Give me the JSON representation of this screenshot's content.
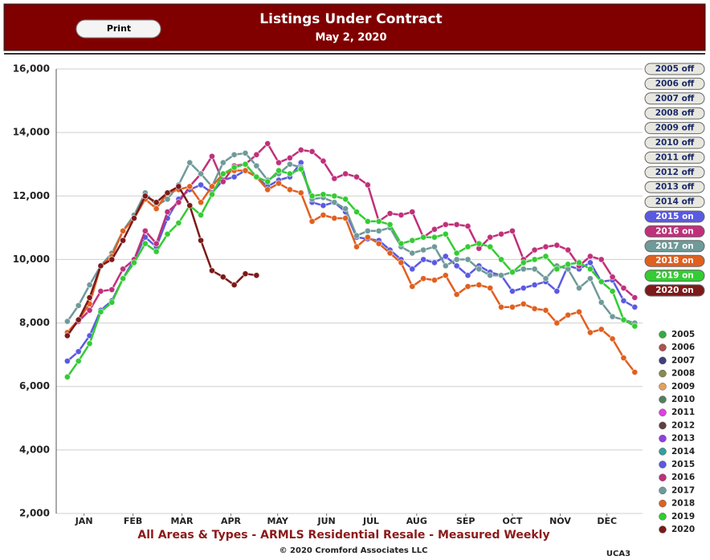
{
  "header": {
    "button": "Print"
  },
  "chart_data": {
    "type": "line",
    "title": "Listings Under Contract",
    "subtitle": "May 2, 2020",
    "x_axis_label": "All Areas & Types - ARMLS Residential Resale - Measured Weekly",
    "credit": "© 2020 Cromford Associates LLC",
    "code": "UCA3",
    "xlim": [
      0,
      52.7
    ],
    "xticks": [
      {
        "value": 2.5,
        "label": "JAN"
      },
      {
        "value": 6.9,
        "label": "FEB"
      },
      {
        "value": 11.3,
        "label": "MAR"
      },
      {
        "value": 15.7,
        "label": "APR"
      },
      {
        "value": 19.9,
        "label": "MAY"
      },
      {
        "value": 24.3,
        "label": "JUN"
      },
      {
        "value": 28.3,
        "label": "JUL"
      },
      {
        "value": 32.4,
        "label": "AUG"
      },
      {
        "value": 36.8,
        "label": "SEP"
      },
      {
        "value": 41,
        "label": "OCT"
      },
      {
        "value": 45.3,
        "label": "NOV"
      },
      {
        "value": 49.5,
        "label": "DEC"
      }
    ],
    "ylim": [
      2000,
      16000
    ],
    "yticks": [
      {
        "value": 2000,
        "label": "2,000"
      },
      {
        "value": 4000,
        "label": "4,000"
      },
      {
        "value": 6000,
        "label": "6,000"
      },
      {
        "value": 8000,
        "label": "8,000"
      },
      {
        "value": 10000,
        "label": "10,000"
      },
      {
        "value": 12000,
        "label": "12,000"
      },
      {
        "value": 14000,
        "label": "14,000"
      },
      {
        "value": 16000,
        "label": "16,000"
      }
    ],
    "grid": true,
    "toggles": [
      {
        "label": "2005 off",
        "on": false
      },
      {
        "label": "2006 off",
        "on": false
      },
      {
        "label": "2007 off",
        "on": false
      },
      {
        "label": "2008 off",
        "on": false
      },
      {
        "label": "2009 off",
        "on": false
      },
      {
        "label": "2010 off",
        "on": false
      },
      {
        "label": "2011 off",
        "on": false
      },
      {
        "label": "2012 off",
        "on": false
      },
      {
        "label": "2013 off",
        "on": false
      },
      {
        "label": "2014 off",
        "on": false
      },
      {
        "label": "2015 on",
        "on": true
      },
      {
        "label": "2016 on",
        "on": true
      },
      {
        "label": "2017 on",
        "on": true
      },
      {
        "label": "2018 on",
        "on": true
      },
      {
        "label": "2019 on",
        "on": true
      },
      {
        "label": "2020 on",
        "on": true
      }
    ],
    "hidden_series": [
      {
        "name": "2005",
        "color": "#33aa44"
      },
      {
        "name": "2006",
        "color": "#b05050"
      },
      {
        "name": "2007",
        "color": "#404080"
      },
      {
        "name": "2008",
        "color": "#8a8a50"
      },
      {
        "name": "2009",
        "color": "#e0a060"
      },
      {
        "name": "2010",
        "color": "#508060"
      },
      {
        "name": "2011",
        "color": "#e040e0"
      },
      {
        "name": "2012",
        "color": "#604040"
      },
      {
        "name": "2013",
        "color": "#9040e0"
      },
      {
        "name": "2014",
        "color": "#30a0a0"
      }
    ],
    "series": [
      {
        "name": "2015",
        "color": "#5a5ae0",
        "values": [
          6800,
          7100,
          7600,
          8400,
          8700,
          9400,
          10000,
          10700,
          10400,
          11300,
          11900,
          12200,
          12350,
          12100,
          12500,
          12600,
          12800,
          12600,
          12300,
          12500,
          12600,
          13050,
          11800,
          11700,
          11800,
          11500,
          10700,
          10650,
          10600,
          10300,
          10000,
          9700,
          10000,
          9900,
          10100,
          9800,
          9500,
          9800,
          9600,
          9500,
          9000,
          9100,
          9200,
          9300,
          9000,
          9800,
          9700,
          9900,
          9300,
          9350,
          8700,
          8500
        ]
      },
      {
        "name": "2016",
        "color": "#c0307a",
        "values": [
          7700,
          8050,
          8400,
          9000,
          9050,
          9700,
          10000,
          10900,
          10500,
          11500,
          11800,
          12300,
          12700,
          13250,
          12450,
          12950,
          13000,
          13300,
          13650,
          13050,
          13200,
          13450,
          13400,
          13100,
          12550,
          12700,
          12600,
          12350,
          11200,
          11450,
          11400,
          11500,
          10700,
          10950,
          11100,
          11100,
          11050,
          10350,
          10700,
          10800,
          10900,
          10000,
          10300,
          10400,
          10450,
          10300,
          9800,
          10100,
          10000,
          9450,
          9100,
          8800
        ]
      },
      {
        "name": "2017",
        "color": "#6f9a9a",
        "values": [
          8050,
          8550,
          9200,
          9800,
          10200,
          10900,
          11400,
          12100,
          11700,
          11900,
          12350,
          13050,
          12700,
          12300,
          13050,
          13300,
          13350,
          12950,
          12500,
          12700,
          13000,
          12900,
          11900,
          11950,
          11800,
          11600,
          10750,
          10900,
          10900,
          11000,
          10400,
          10200,
          10300,
          10400,
          9800,
          10000,
          10000,
          9700,
          9500,
          9500,
          9600,
          9700,
          9700,
          9400,
          9800,
          9700,
          9100,
          9400,
          8650,
          8200,
          8100,
          8000
        ]
      },
      {
        "name": "2018",
        "color": "#e06020",
        "values": [
          7700,
          8100,
          8600,
          9800,
          10100,
          10900,
          11300,
          11900,
          11600,
          12100,
          12200,
          12300,
          11800,
          12300,
          12700,
          12800,
          12800,
          12600,
          12200,
          12400,
          12200,
          12100,
          11200,
          11400,
          11300,
          11300,
          10400,
          10700,
          10500,
          10200,
          9900,
          9150,
          9400,
          9350,
          9500,
          8900,
          9150,
          9200,
          9100,
          8500,
          8500,
          8600,
          8450,
          8400,
          8000,
          8250,
          8350,
          7700,
          7800,
          7500,
          6900,
          6450
        ]
      },
      {
        "name": "2019",
        "color": "#33cc33",
        "values": [
          6300,
          6800,
          7350,
          8350,
          8650,
          9400,
          9900,
          10500,
          10250,
          10800,
          11150,
          11700,
          11400,
          12050,
          12700,
          12900,
          13000,
          12600,
          12450,
          12800,
          12700,
          12850,
          12000,
          12050,
          12000,
          11900,
          11500,
          11200,
          11200,
          11100,
          10500,
          10600,
          10700,
          10700,
          10800,
          10200,
          10400,
          10500,
          10400,
          10000,
          9600,
          9900,
          10000,
          10100,
          9700,
          9850,
          9900,
          9700,
          9300,
          9000,
          8100,
          7900
        ]
      },
      {
        "name": "2020",
        "color": "#7b1a1a",
        "values": [
          7600,
          8100,
          8800,
          9800,
          10000,
          10600,
          11300,
          12000,
          11800,
          12100,
          12300,
          11700,
          10600,
          9650,
          9450,
          9200,
          9550,
          9500
        ]
      }
    ]
  }
}
